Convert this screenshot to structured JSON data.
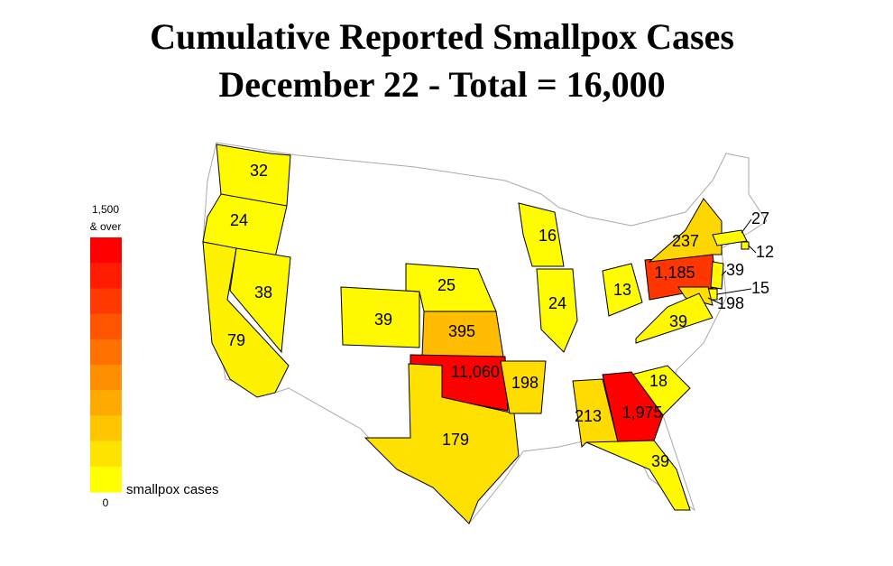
{
  "title": [
    "Cumulative Reported Smallpox Cases",
    "December 22 - Total = 16,000"
  ],
  "legend": {
    "max": {
      "value": 1500,
      "label": "1,500"
    },
    "max_note": "& over",
    "min": 0,
    "caption": "smallpox cases"
  },
  "states": [
    {
      "value": 32
    },
    {
      "value": 24
    },
    {
      "value": 79
    },
    {
      "value": 38
    },
    {
      "value": 39
    },
    {
      "value": 25
    },
    {
      "value": 395
    },
    {
      "value": 11060,
      "label": "11,060"
    },
    {
      "value": 179
    },
    {
      "value": 198
    },
    {
      "value": 16
    },
    {
      "value": 24
    },
    {
      "value": 13
    },
    {
      "value": 1185,
      "label": "1,185"
    },
    {
      "value": 237
    },
    {
      "value": 27
    },
    {
      "value": 12
    },
    {
      "value": 39
    },
    {
      "value": 15
    },
    {
      "value": 198
    },
    {
      "value": 39
    },
    {
      "value": 18
    },
    {
      "value": 1975,
      "label": "1,975"
    },
    {
      "value": 213
    },
    {
      "value": 39
    }
  ]
}
